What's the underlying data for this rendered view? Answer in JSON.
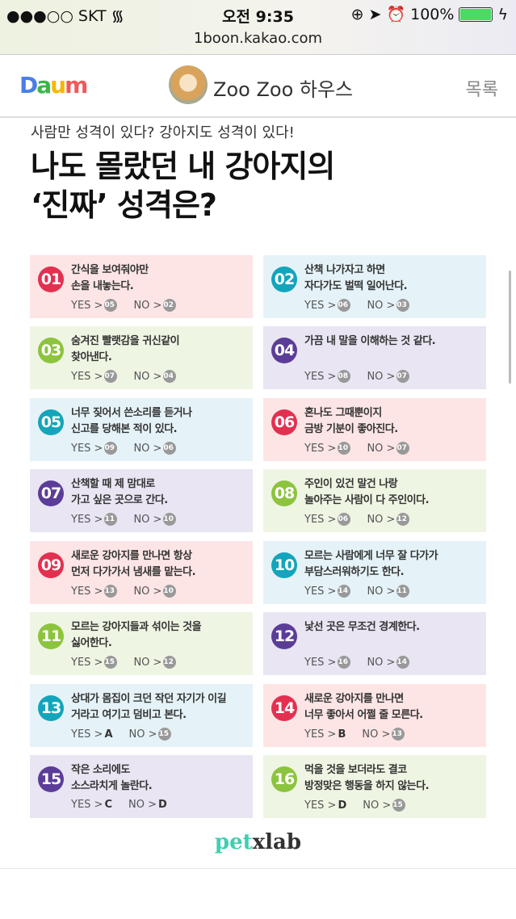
{
  "status": {
    "carrier": "●●●○○ SKT",
    "time": "오전 9:35",
    "battery": "100%",
    "battery_level": 1.0
  },
  "url": "1boon.kakao.com",
  "nav": {
    "logo": "Daum",
    "title": "Zoo Zoo 하우스",
    "list": "목록"
  },
  "article": {
    "subtitle": "사람만 성격이 있다? 강아지도 성격이 있다!",
    "title_line1": "나도 몰랐던 내 강아지의",
    "title_line2": "‘진짜’ 성격은?"
  },
  "colors": {
    "red": "#e33050",
    "teal": "#13a5bb",
    "green": "#8cc43e",
    "purple": "#5b3d98",
    "red_bg": "#fde5e5",
    "teal_bg": "#e5f3f8",
    "green_bg": "#eff5e3",
    "purple_bg": "#e9e5f3"
  },
  "yes_label": "YES >",
  "no_label": "NO >",
  "cards": [
    {
      "num": "01",
      "color": "red",
      "text": "간식을 보여줘야만\n손을 내놓는다.",
      "yes": "05",
      "no": "02"
    },
    {
      "num": "02",
      "color": "teal",
      "text": "산책 나가자고 하면\n자다가도 벌떡 일어난다.",
      "yes": "06",
      "no": "03"
    },
    {
      "num": "03",
      "color": "green",
      "text": "숨겨진 빨랫감을 귀신같이\n찾아낸다.",
      "yes": "07",
      "no": "04"
    },
    {
      "num": "04",
      "color": "purple",
      "text": "가끔 내 말을 이해하는 것 같다.",
      "yes": "08",
      "no": "07"
    },
    {
      "num": "05",
      "color": "teal",
      "text": "너무 짖어서 쓴소리를 듣거나\n신고를 당해본 적이 있다.",
      "yes": "09",
      "no": "06"
    },
    {
      "num": "06",
      "color": "red",
      "text": "혼나도 그때뿐이지\n금방 기분이 좋아진다.",
      "yes": "10",
      "no": "07"
    },
    {
      "num": "07",
      "color": "purple",
      "text": "산책할 때 제 맘대로\n가고 싶은 곳으로 간다.",
      "yes": "11",
      "no": "10"
    },
    {
      "num": "08",
      "color": "green",
      "text": "주인이 있건 말건 나랑\n놀아주는 사람이 다 주인이다.",
      "yes": "06",
      "no": "12"
    },
    {
      "num": "09",
      "color": "red",
      "text": "새로운 강아지를 만나면 항상\n먼저 다가가서 냄새를 맡는다.",
      "yes": "13",
      "no": "10"
    },
    {
      "num": "10",
      "color": "teal",
      "text": "모르는 사람에게 너무 잘 다가가\n부담스러워하기도 한다.",
      "yes": "14",
      "no": "11"
    },
    {
      "num": "11",
      "color": "green",
      "text": "모르는 강아지들과 섞이는 것을\n싫어한다.",
      "yes": "15",
      "no": "12"
    },
    {
      "num": "12",
      "color": "purple",
      "text": "낯선 곳은 무조건 경계한다.",
      "yes": "16",
      "no": "14"
    },
    {
      "num": "13",
      "color": "teal",
      "text": "상대가 몸집이 크던 작던 자기가 이길\n거라고 여기고 덤비고 본다.",
      "yes": "A",
      "no": "15"
    },
    {
      "num": "14",
      "color": "red",
      "text": "새로운 강아지를 만나면\n너무 좋아서 어쩔 줄 모른다.",
      "yes": "B",
      "no": "13"
    },
    {
      "num": "15",
      "color": "purple",
      "text": "작은 소리에도\n소스라치게 놀란다.",
      "yes": "C",
      "no": "D"
    },
    {
      "num": "16",
      "color": "green",
      "text": "먹을 것을 보더라도 결코\n방정맞은 행동을 하지 않는다.",
      "yes": "D",
      "no": "15"
    }
  ],
  "footer": {
    "logo": "petxlab"
  }
}
